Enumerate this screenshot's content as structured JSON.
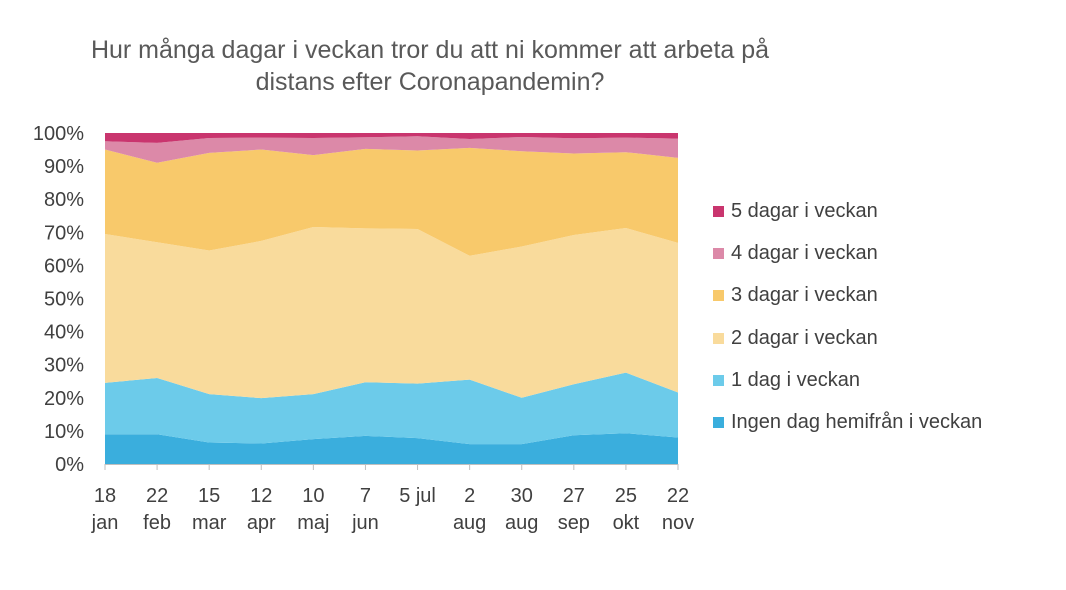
{
  "chart_data": {
    "type": "area",
    "stacked": true,
    "normalized_percent": true,
    "title": "Hur många dagar i veckan tror du att ni kommer att arbeta på distans efter Coronapandemin?",
    "title_lines": [
      "Hur många dagar i veckan tror du att ni kommer att arbeta på",
      "distans efter Coronapandemin?"
    ],
    "x_labels": [
      [
        "18",
        "jan"
      ],
      [
        "22",
        "feb"
      ],
      [
        "15",
        "mar"
      ],
      [
        "12",
        "apr"
      ],
      [
        "10",
        "maj"
      ],
      [
        "7",
        "jun"
      ],
      [
        "5 jul",
        ""
      ],
      [
        "2",
        "aug"
      ],
      [
        "30",
        "aug"
      ],
      [
        "27",
        "sep"
      ],
      [
        "25",
        "okt"
      ],
      [
        "22",
        "nov"
      ]
    ],
    "y_ticks": [
      "0%",
      "10%",
      "20%",
      "30%",
      "40%",
      "50%",
      "60%",
      "70%",
      "80%",
      "90%",
      "100%"
    ],
    "ylim": [
      0,
      100
    ],
    "legend_position": "right",
    "series": [
      {
        "name": "Ingen dag hemifrån i veckan",
        "color": "#3aaedd",
        "values": [
          9,
          9,
          6.5,
          6.2,
          7.5,
          8.5,
          7.8,
          6,
          6,
          8.7,
          9.3,
          8
        ]
      },
      {
        "name": "1 dag i veckan",
        "color": "#6ccbea",
        "values": [
          15.5,
          17,
          14.6,
          13.7,
          13.6,
          16.2,
          16.5,
          19.5,
          14,
          15.4,
          18.3,
          13.6
        ]
      },
      {
        "name": "2 dagar i veckan",
        "color": "#f9db9c",
        "values": [
          45,
          41,
          43.4,
          47.5,
          50.5,
          46.5,
          46.7,
          37.4,
          45.7,
          45.1,
          43.7,
          45.2
        ]
      },
      {
        "name": "3 dagar i veckan",
        "color": "#f8c96b",
        "values": [
          25.5,
          24,
          29.5,
          27.6,
          21.7,
          24,
          23.7,
          32.6,
          28.8,
          24.6,
          22.9,
          25.7
        ]
      },
      {
        "name": "4 dagar i veckan",
        "color": "#dc89a8",
        "values": [
          2.5,
          6,
          4.5,
          3.6,
          5.2,
          3.5,
          4.3,
          2.7,
          4.3,
          4.6,
          4.4,
          5.8
        ]
      },
      {
        "name": "5 dagar i veckan",
        "color": "#c9356e",
        "values": [
          2.5,
          3,
          1.5,
          1.4,
          1.5,
          1.3,
          1,
          1.8,
          1.2,
          1.6,
          1.4,
          1.7
        ]
      }
    ]
  }
}
